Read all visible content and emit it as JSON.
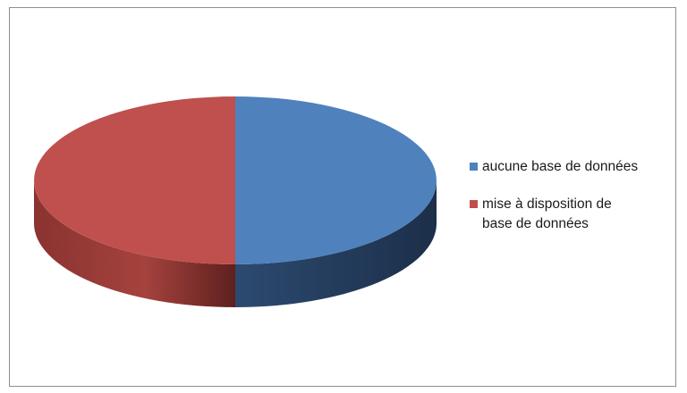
{
  "chart_data": {
    "type": "pie",
    "title": "",
    "categories": [
      "aucune base de données",
      " mise à disposition de\nbase de données"
    ],
    "values": [
      50,
      50
    ],
    "colors": [
      "#4f81bd",
      "#c0504d"
    ],
    "pie_style": "3d",
    "legend_position": "right"
  }
}
